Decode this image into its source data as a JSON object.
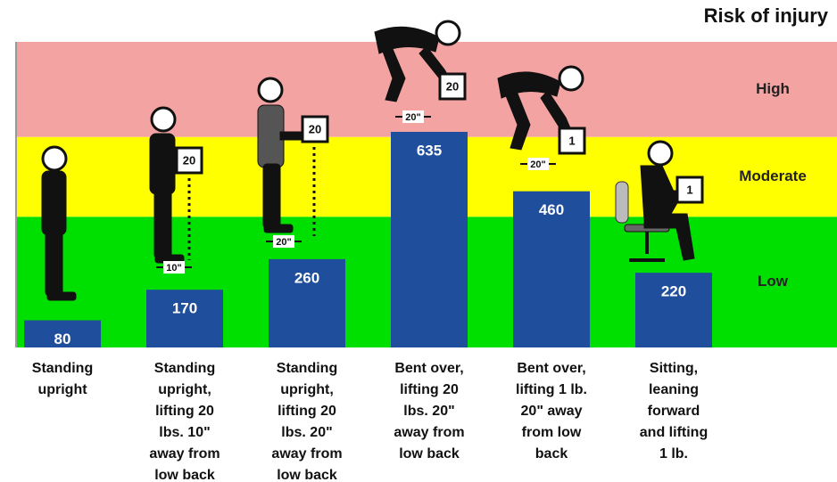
{
  "chart_data": {
    "type": "bar",
    "title": "Risk of injury",
    "categories": [
      "Standing\nupright",
      "Standing\nupright,\nlifting 20\nlbs. 10\"\naway from\nlow back",
      "Standing\nupright,\nlifting 20\nlbs. 20\"\naway from\nlow back",
      "Bent over,\nlifting 20\nlbs. 20\"\naway from\nlow back",
      "Bent over,\nlifting 1 lb.\n20\" away\nfrom low\nback",
      "Sitting,\nleaning\nforward\nand lifting\n1 lb."
    ],
    "values": [
      80,
      170,
      260,
      635,
      460,
      220
    ],
    "color": "#1f4e9c",
    "ylim": [
      0,
      900
    ],
    "bands": [
      {
        "label": "Low",
        "color": "#00e000",
        "from": 0,
        "to": 385
      },
      {
        "label": "Moderate",
        "color": "#ffff00",
        "from": 385,
        "to": 620
      },
      {
        "label": "High",
        "color": "#f4a3a3",
        "from": 620,
        "to": 900
      }
    ],
    "loads": [
      null,
      "20",
      "20",
      "20",
      "1",
      "1"
    ],
    "distances": [
      null,
      "10\"",
      "20\"",
      "20\"",
      "20\"",
      null
    ]
  }
}
